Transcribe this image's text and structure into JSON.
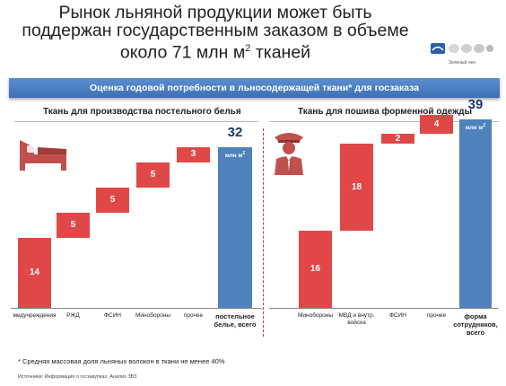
{
  "title": "Рынок льняной продукции может быть поддержан государственным заказом в объеме около 71 млн м",
  "title_sup": "2",
  "title_tail": " тканей",
  "logo_caption": "Зеленый лен",
  "banner": "Оценка годовой потребности в льносодержащей ткани* для госзаказа",
  "colors": {
    "accent_red": "#e04848",
    "total_blue": "#4f81bd",
    "banner": "#3d6fb5"
  },
  "icons": [
    "bed-icon",
    "officer-icon"
  ],
  "footnote": "* Средняя массовая доля льняных волокон в ткани не менее 40%",
  "source": "Источники: Информация о госзакупках, Анализ ЗВЗ",
  "chart_data": [
    {
      "type": "waterfall",
      "title": "Ткань для производства постельного белья",
      "categories": [
        "медучреждения",
        "РЖД",
        "ФСИН",
        "Минобороны",
        "прочее",
        "постельное белье, всего"
      ],
      "values": [
        14,
        5,
        5,
        5,
        3,
        32
      ],
      "total_index": 5,
      "unit": "млн м",
      "unit_sup": "2",
      "ylim": [
        0,
        36
      ]
    },
    {
      "type": "waterfall",
      "title": "Ткань для пошива форменной одежды",
      "categories": [
        "Минобороны",
        "МВД и внутр. войска",
        "ФСИН",
        "прочее",
        "форма сотрудников, всего"
      ],
      "values": [
        16,
        18,
        2,
        4,
        39
      ],
      "total_index": 4,
      "unit": "млн м",
      "unit_sup": "2",
      "ylim": [
        0,
        41
      ]
    }
  ]
}
